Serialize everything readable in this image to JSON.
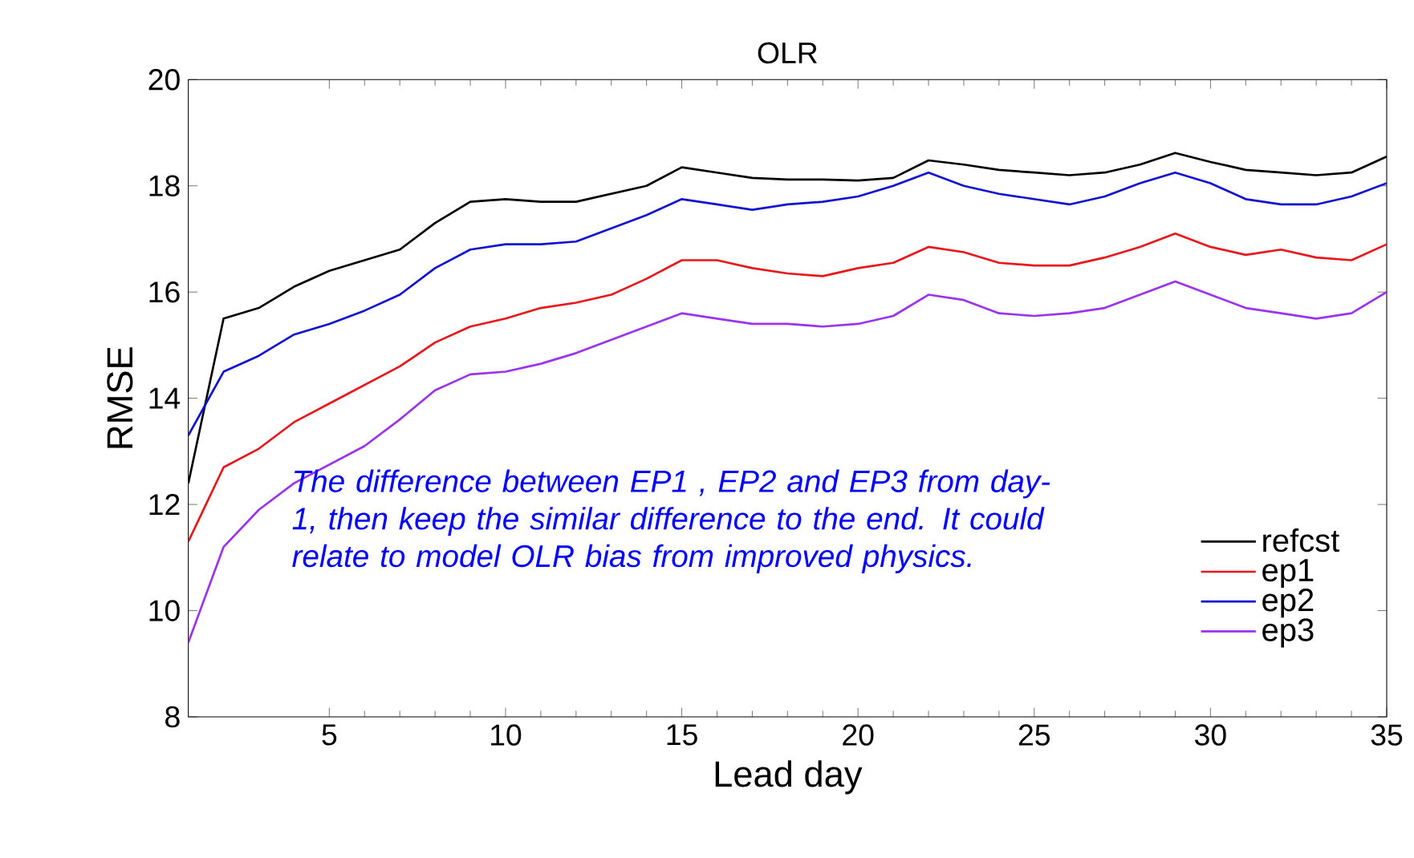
{
  "chart_data": {
    "type": "line",
    "title": "OLR",
    "xlabel": "Lead day",
    "ylabel": "RMSE",
    "x": [
      1,
      2,
      3,
      4,
      5,
      6,
      7,
      8,
      9,
      10,
      11,
      12,
      13,
      14,
      15,
      16,
      17,
      18,
      19,
      20,
      21,
      22,
      23,
      24,
      25,
      26,
      27,
      28,
      29,
      30,
      31,
      32,
      33,
      34,
      35
    ],
    "xlim": [
      1,
      35
    ],
    "xticks": [
      5,
      10,
      15,
      20,
      25,
      30,
      35
    ],
    "ylim": [
      8,
      20
    ],
    "yticks": [
      8,
      10,
      12,
      14,
      16,
      18,
      20
    ],
    "grid": false,
    "legend": "bottom right",
    "marker": "none",
    "line_style": "solid",
    "annotations": [
      "The difference between EP1 , EP2 and EP3 from day-1, then keep the similar difference to the end. It could relate to model OLR bias from improved physics."
    ],
    "series": [
      {
        "name": "refcst",
        "color": "#000000",
        "values": [
          12.4,
          15.5,
          15.7,
          16.1,
          16.4,
          16.6,
          16.8,
          17.3,
          17.7,
          17.75,
          17.7,
          17.7,
          17.85,
          18.0,
          18.35,
          18.25,
          18.15,
          18.12,
          18.12,
          18.1,
          18.15,
          18.48,
          18.4,
          18.3,
          18.25,
          18.2,
          18.25,
          18.4,
          18.62,
          18.45,
          18.3,
          18.25,
          18.2,
          18.25,
          18.55
        ]
      },
      {
        "name": "ep1",
        "color": "#e8161b",
        "values": [
          11.3,
          12.7,
          13.05,
          13.55,
          13.9,
          14.25,
          14.6,
          15.05,
          15.35,
          15.5,
          15.7,
          15.8,
          15.95,
          16.25,
          16.6,
          16.6,
          16.45,
          16.35,
          16.3,
          16.45,
          16.55,
          16.85,
          16.75,
          16.55,
          16.5,
          16.5,
          16.65,
          16.85,
          17.1,
          16.85,
          16.7,
          16.8,
          16.65,
          16.6,
          16.9
        ]
      },
      {
        "name": "ep2",
        "color": "#1010d0",
        "values": [
          13.3,
          14.5,
          14.8,
          15.2,
          15.4,
          15.65,
          15.95,
          16.45,
          16.8,
          16.9,
          16.9,
          16.95,
          17.2,
          17.45,
          17.75,
          17.65,
          17.55,
          17.65,
          17.7,
          17.8,
          18.0,
          18.25,
          18.0,
          17.85,
          17.75,
          17.65,
          17.8,
          18.05,
          18.25,
          18.05,
          17.75,
          17.65,
          17.65,
          17.8,
          18.05
        ]
      },
      {
        "name": "ep3",
        "color": "#9933ee",
        "values": [
          9.4,
          11.2,
          11.9,
          12.4,
          12.75,
          13.1,
          13.6,
          14.15,
          14.45,
          14.5,
          14.65,
          14.85,
          15.1,
          15.35,
          15.6,
          15.5,
          15.4,
          15.4,
          15.35,
          15.4,
          15.55,
          15.95,
          15.85,
          15.6,
          15.55,
          15.6,
          15.7,
          15.95,
          16.2,
          15.95,
          15.7,
          15.6,
          15.5,
          15.6,
          16.0
        ]
      }
    ]
  }
}
